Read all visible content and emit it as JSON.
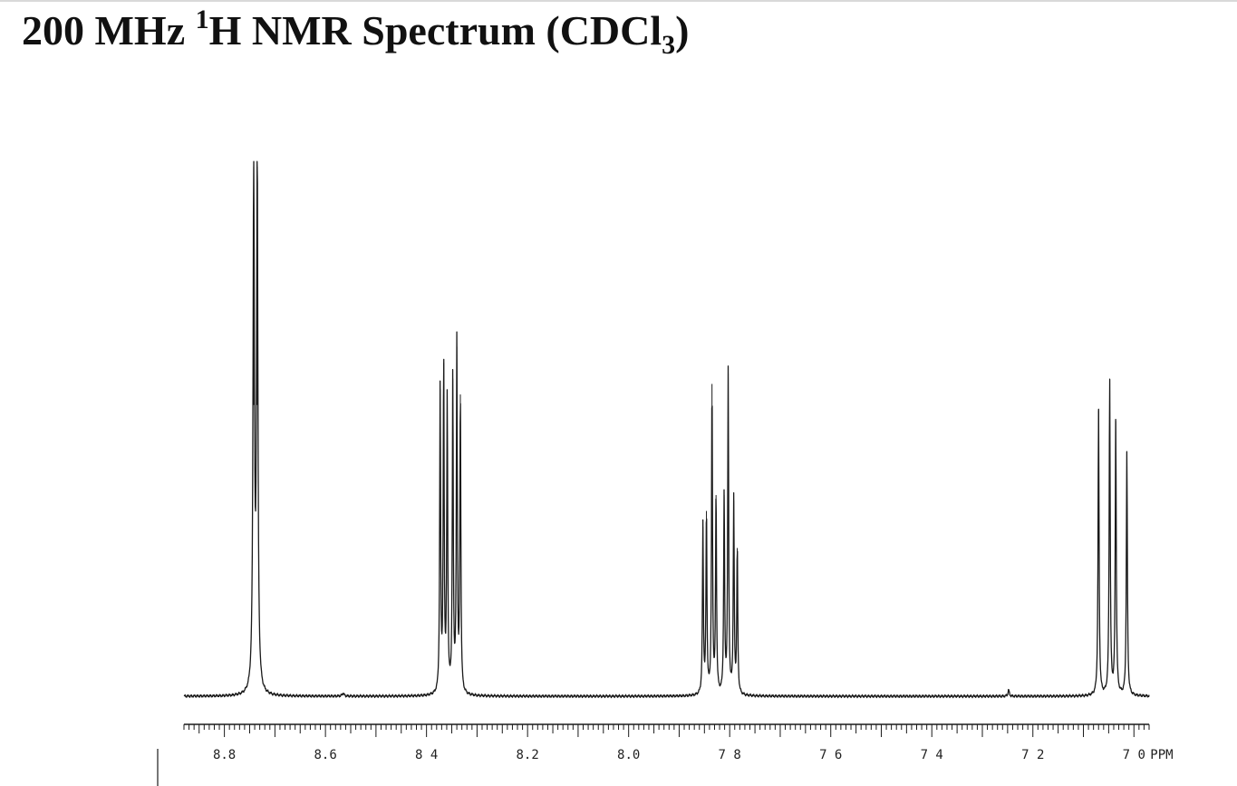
{
  "title": {
    "prefix": "200 MHz ",
    "isotope_mass": "1",
    "nucleus_and_type": "H NMR Spectrum (CDCl",
    "solvent_subscript": "3",
    "suffix": ")"
  },
  "chart_data": {
    "type": "line",
    "title": "200 MHz 1H NMR Spectrum (CDCl3)",
    "xlabel": "PPM",
    "ylabel": "",
    "xlim": [
      8.88,
      6.97
    ],
    "x_reversed": true,
    "grid": false,
    "axis_tick_labels": [
      "8.8",
      "8.6",
      "8 4",
      "8.2",
      "8.0",
      "7 8",
      "7 6",
      "7 4",
      "7 2",
      "7 0"
    ],
    "axis_tick_values": [
      8.8,
      8.6,
      8.4,
      8.2,
      8.0,
      7.8,
      7.6,
      7.4,
      7.2,
      7.0
    ],
    "unit_label": "PPM",
    "baseline_intensity": 0.0,
    "peaks": [
      {
        "ppm": 8.742,
        "height": 1.0,
        "width": 0.0032
      },
      {
        "ppm": 8.735,
        "height": 1.0,
        "width": 0.0032
      },
      {
        "ppm": 8.565,
        "height": 0.006,
        "width": 0.004
      },
      {
        "ppm": 8.373,
        "height": 0.58,
        "width": 0.0022
      },
      {
        "ppm": 8.366,
        "height": 0.63,
        "width": 0.0022
      },
      {
        "ppm": 8.359,
        "height": 0.56,
        "width": 0.0022
      },
      {
        "ppm": 8.348,
        "height": 0.6,
        "width": 0.0022
      },
      {
        "ppm": 8.34,
        "height": 0.66,
        "width": 0.0022
      },
      {
        "ppm": 8.333,
        "height": 0.57,
        "width": 0.0022
      },
      {
        "ppm": 7.853,
        "height": 0.32,
        "width": 0.0022
      },
      {
        "ppm": 7.846,
        "height": 0.35,
        "width": 0.0022
      },
      {
        "ppm": 7.835,
        "height": 0.59,
        "width": 0.0022
      },
      {
        "ppm": 7.827,
        "height": 0.38,
        "width": 0.0022
      },
      {
        "ppm": 7.811,
        "height": 0.38,
        "width": 0.0022
      },
      {
        "ppm": 7.803,
        "height": 0.61,
        "width": 0.0022
      },
      {
        "ppm": 7.792,
        "height": 0.37,
        "width": 0.0022
      },
      {
        "ppm": 7.785,
        "height": 0.28,
        "width": 0.0022
      },
      {
        "ppm": 7.248,
        "height": 0.012,
        "width": 0.003
      },
      {
        "ppm": 7.07,
        "height": 0.54,
        "width": 0.0024
      },
      {
        "ppm": 7.048,
        "height": 0.6,
        "width": 0.0024
      },
      {
        "ppm": 7.036,
        "height": 0.52,
        "width": 0.0024
      },
      {
        "ppm": 7.014,
        "height": 0.46,
        "width": 0.0024
      }
    ]
  }
}
